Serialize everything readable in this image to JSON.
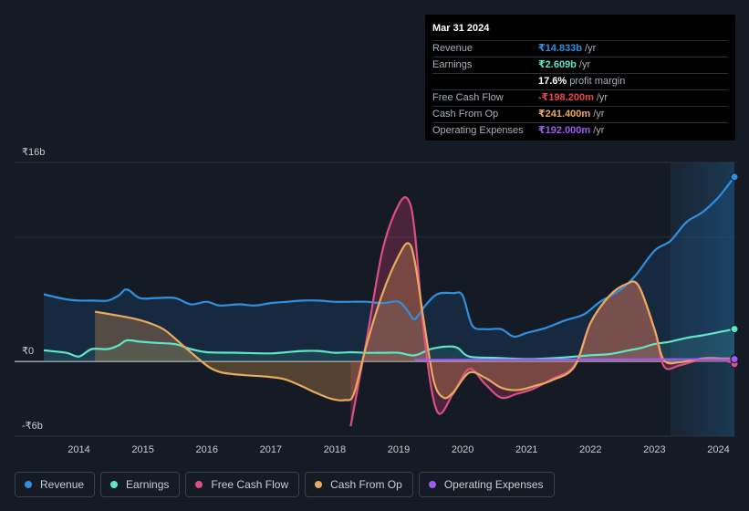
{
  "chart_data": {
    "type": "area",
    "y_tick_labels": [
      "₹16b",
      "₹0",
      "-₹6b"
    ],
    "ylim": [
      -6,
      16
    ],
    "xlim": [
      2013.45,
      2024.25
    ],
    "x_tick_labels": [
      "2014",
      "2015",
      "2016",
      "2017",
      "2018",
      "2019",
      "2020",
      "2021",
      "2022",
      "2023",
      "2024"
    ],
    "x_ticks": [
      2014,
      2015,
      2016,
      2017,
      2018,
      2019,
      2020,
      2021,
      2022,
      2023,
      2024
    ],
    "forecast_start": 2023.25,
    "series": [
      {
        "name": "Revenue",
        "color": "#2f8fe0",
        "fill": "rgba(40,120,200,0.16)",
        "x": [
          2013.45,
          2013.8,
          2014.0,
          2014.2,
          2014.45,
          2014.62,
          2014.75,
          2014.95,
          2015.2,
          2015.5,
          2015.75,
          2016.0,
          2016.2,
          2016.5,
          2016.75,
          2017.0,
          2017.25,
          2017.5,
          2017.75,
          2018.0,
          2018.25,
          2018.5,
          2018.75,
          2019.0,
          2019.15,
          2019.25,
          2019.4,
          2019.6,
          2019.85,
          2020.0,
          2020.15,
          2020.35,
          2020.6,
          2020.8,
          2021.0,
          2021.3,
          2021.6,
          2021.9,
          2022.15,
          2022.45,
          2022.7,
          2023.0,
          2023.25,
          2023.5,
          2023.75,
          2024.0,
          2024.25
        ],
        "y": [
          5.4,
          5.0,
          4.9,
          4.9,
          4.9,
          5.3,
          5.8,
          5.1,
          5.1,
          5.1,
          4.6,
          4.8,
          4.5,
          4.6,
          4.5,
          4.7,
          4.8,
          4.9,
          4.9,
          4.8,
          4.8,
          4.8,
          4.7,
          4.8,
          4.0,
          3.4,
          4.4,
          5.4,
          5.5,
          5.3,
          2.9,
          2.6,
          2.6,
          2.0,
          2.3,
          2.7,
          3.3,
          3.8,
          4.8,
          5.7,
          6.9,
          8.9,
          9.7,
          11.2,
          12.0,
          13.2,
          14.833
        ]
      },
      {
        "name": "Earnings",
        "color": "#5de6c8",
        "fill": "rgba(80,200,180,0.14)",
        "x": [
          2013.45,
          2013.8,
          2014.0,
          2014.2,
          2014.45,
          2014.62,
          2014.75,
          2014.95,
          2015.2,
          2015.5,
          2015.75,
          2016.0,
          2016.5,
          2017.0,
          2017.25,
          2017.5,
          2017.75,
          2018.0,
          2018.25,
          2018.5,
          2018.75,
          2019.0,
          2019.25,
          2019.5,
          2019.75,
          2019.92,
          2020.1,
          2020.5,
          2021.0,
          2021.5,
          2022.0,
          2022.3,
          2022.6,
          2022.8,
          2023.0,
          2023.25,
          2023.5,
          2023.75,
          2024.0,
          2024.25
        ],
        "y": [
          0.9,
          0.7,
          0.4,
          1.0,
          1.0,
          1.3,
          1.7,
          1.6,
          1.5,
          1.4,
          1.0,
          0.75,
          0.7,
          0.65,
          0.75,
          0.85,
          0.85,
          0.7,
          0.75,
          0.7,
          0.7,
          0.7,
          0.5,
          1.0,
          1.2,
          1.1,
          0.4,
          0.3,
          0.2,
          0.3,
          0.5,
          0.6,
          0.9,
          1.1,
          1.4,
          1.6,
          1.9,
          2.1,
          2.35,
          2.609
        ]
      },
      {
        "name": "Free Cash Flow",
        "color": "#d94f86",
        "fill": "rgba(200,60,110,0.30)",
        "x": [
          2018.25,
          2018.5,
          2018.75,
          2019.0,
          2019.15,
          2019.25,
          2019.4,
          2019.6,
          2019.85,
          2020.1,
          2020.35,
          2020.6,
          2020.85,
          2021.1,
          2021.4,
          2021.75,
          2022.0,
          2022.3,
          2022.55,
          2022.75,
          2023.0,
          2023.15,
          2023.4,
          2023.75,
          2024.0,
          2024.25
        ],
        "y": [
          -5.2,
          1.8,
          9.0,
          12.6,
          13.0,
          10.5,
          2.0,
          -4.0,
          -2.6,
          -0.6,
          -1.8,
          -2.9,
          -2.6,
          -2.2,
          -1.4,
          -0.3,
          3.1,
          5.3,
          6.2,
          6.1,
          2.6,
          -0.4,
          -0.3,
          0.2,
          0.25,
          -0.198
        ]
      },
      {
        "name": "Cash From Op",
        "color": "#e8aa5e",
        "fill": "rgba(210,150,80,0.32)",
        "x": [
          2014.25,
          2014.6,
          2014.9,
          2015.15,
          2015.35,
          2015.6,
          2015.85,
          2016.05,
          2016.25,
          2016.6,
          2016.9,
          2017.2,
          2017.45,
          2017.7,
          2017.95,
          2018.15,
          2018.3,
          2018.5,
          2018.75,
          2019.0,
          2019.15,
          2019.25,
          2019.4,
          2019.55,
          2019.7,
          2019.85,
          2020.1,
          2020.35,
          2020.6,
          2020.85,
          2021.1,
          2021.4,
          2021.75,
          2022.0,
          2022.3,
          2022.55,
          2022.75,
          2023.0,
          2023.15,
          2023.4,
          2023.75,
          2024.0,
          2024.25
        ],
        "y": [
          4.0,
          3.7,
          3.4,
          3.0,
          2.5,
          1.4,
          0.3,
          -0.5,
          -0.9,
          -1.1,
          -1.2,
          -1.4,
          -1.9,
          -2.5,
          -3.0,
          -3.1,
          -2.6,
          1.4,
          5.5,
          8.5,
          9.5,
          8.1,
          3.0,
          -1.6,
          -2.9,
          -2.5,
          -0.9,
          -1.3,
          -2.1,
          -2.3,
          -2.0,
          -1.5,
          -0.4,
          3.1,
          5.3,
          6.2,
          6.1,
          2.6,
          0.1,
          -0.05,
          0.25,
          0.25,
          0.241
        ]
      },
      {
        "name": "Operating Expenses",
        "color": "#a05cf0",
        "fill": "rgba(150,80,230,0.18)",
        "x": [
          2019.25,
          2019.6,
          2020.0,
          2020.5,
          2021.0,
          2021.5,
          2022.0,
          2022.5,
          2023.0,
          2023.5,
          2024.0,
          2024.25
        ],
        "y": [
          0.12,
          0.13,
          0.14,
          0.15,
          0.16,
          0.16,
          0.17,
          0.17,
          0.18,
          0.18,
          0.19,
          0.192
        ]
      }
    ],
    "legend_position": "bottom-left"
  },
  "tooltip": {
    "date": "Mar 31 2024",
    "rows": [
      {
        "label": "Revenue",
        "value": "₹14.833b",
        "unit": "/yr",
        "color": "#2f8fe0"
      },
      {
        "label": "Earnings",
        "value": "₹2.609b",
        "unit": "/yr",
        "color": "#5de6c8"
      },
      {
        "label": "",
        "value": "17.6%",
        "unit": "profit margin",
        "color": "#ffffff"
      },
      {
        "label": "Free Cash Flow",
        "value": "-₹198.200m",
        "unit": "/yr",
        "color": "#e5484d"
      },
      {
        "label": "Cash From Op",
        "value": "₹241.400m",
        "unit": "/yr",
        "color": "#e8aa5e"
      },
      {
        "label": "Operating Expenses",
        "value": "₹192.000m",
        "unit": "/yr",
        "color": "#a05cf0"
      }
    ]
  },
  "legend": [
    {
      "label": "Revenue",
      "color": "#2f8fe0"
    },
    {
      "label": "Earnings",
      "color": "#5de6c8"
    },
    {
      "label": "Free Cash Flow",
      "color": "#d94f86"
    },
    {
      "label": "Cash From Op",
      "color": "#e8aa5e"
    },
    {
      "label": "Operating Expenses",
      "color": "#a05cf0"
    }
  ]
}
